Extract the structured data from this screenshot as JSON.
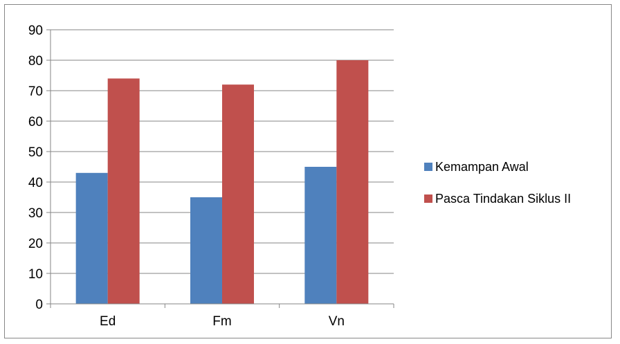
{
  "chart_data": {
    "type": "bar",
    "categories": [
      "Ed",
      "Fm",
      "Vn"
    ],
    "series": [
      {
        "name": "Kemampan Awal",
        "values": [
          43,
          35,
          45
        ],
        "color": "#4F81BD"
      },
      {
        "name": "Pasca Tindakan Siklus II",
        "values": [
          74,
          72,
          80
        ],
        "color": "#C0504D"
      }
    ],
    "ylim": [
      0,
      90
    ],
    "yticks": [
      0,
      10,
      20,
      30,
      40,
      50,
      60,
      70,
      80,
      90
    ],
    "grid": true,
    "legend_position": "right",
    "title": "",
    "xlabel": "",
    "ylabel": ""
  }
}
